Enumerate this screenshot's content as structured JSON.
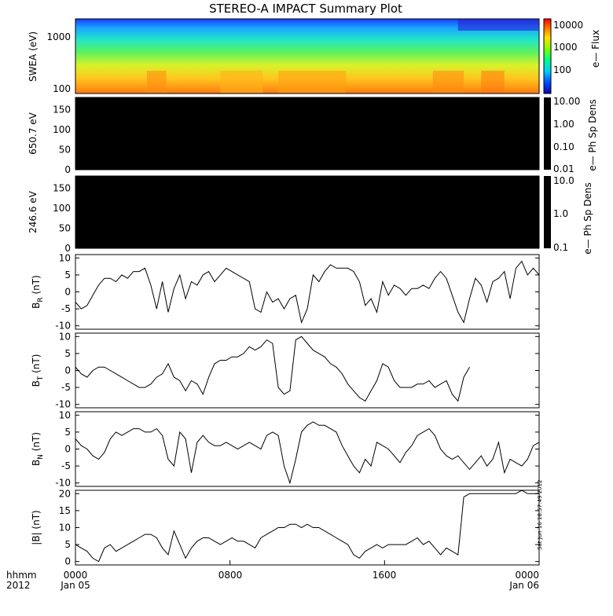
{
  "title": "STEREO-A IMPACT Summary Plot",
  "stamp": "Sat Jun 16 18:57:49 2012",
  "colors": {
    "black": "#000000",
    "white": "#ffffff"
  },
  "panels": {
    "swea": {
      "ylabel": "SWEA (eV)",
      "yticks": [
        "1000",
        "100"
      ],
      "cbar_label": "e— Flux",
      "cbar_ticks": [
        "10000",
        "1000",
        "100"
      ]
    },
    "pad650": {
      "ylabel": "650.7 eV",
      "yticks": [
        "150",
        "100",
        "50",
        "0"
      ],
      "cbar_label": "e— Ph Sp Dens",
      "cbar_ticks": [
        "10.00",
        "1.00",
        "0.10",
        "0.01"
      ]
    },
    "pad246": {
      "ylabel": "246.6 eV",
      "yticks": [
        "150",
        "100",
        "50",
        "0"
      ],
      "cbar_label": "e— Ph Sp Dens",
      "cbar_ticks": [
        "10.0",
        "1.0",
        "0.1"
      ]
    }
  },
  "footer": {
    "left_top": "hhmm",
    "left_bottom": "2012",
    "ticks": [
      "0000",
      "0800",
      "1600",
      "0000"
    ],
    "dates": [
      "Jan 05",
      "Jan 06"
    ]
  },
  "chart_data": [
    {
      "type": "heatmap",
      "panel": "SWEA electron flux spectrogram",
      "ylabel": "SWEA (eV)",
      "yscale": "log",
      "ylim": [
        90,
        2000
      ],
      "xlim": [
        0,
        24
      ],
      "colorbar": {
        "label": "e— Flux",
        "scale": "log",
        "ticks": [
          10000,
          1000,
          100
        ]
      },
      "flux_bands": [
        {
          "energy_ev": 1500,
          "flux": 150
        },
        {
          "energy_ev": 1000,
          "flux": 700
        },
        {
          "energy_ev": 600,
          "flux": 2000
        },
        {
          "energy_ev": 300,
          "flux": 4500
        },
        {
          "energy_ev": 130,
          "flux": 9000
        }
      ]
    },
    {
      "type": "heatmap",
      "panel": "650.7 eV pitch angle distribution",
      "ylabel": "650.7 eV",
      "ylim": [
        0,
        180
      ],
      "yticks": [
        0,
        50,
        100,
        150
      ],
      "colorbar": {
        "label": "e— Ph Sp Dens",
        "scale": "log",
        "ticks": [
          10.0,
          1.0,
          0.1,
          0.01
        ]
      }
    },
    {
      "type": "heatmap",
      "panel": "246.6 eV pitch angle distribution",
      "ylabel": "246.6 eV",
      "ylim": [
        0,
        180
      ],
      "yticks": [
        0,
        50,
        100,
        150
      ],
      "colorbar": {
        "label": "e— Ph Sp Dens",
        "scale": "log",
        "ticks": [
          10.0,
          1.0,
          0.1
        ]
      }
    },
    {
      "type": "line",
      "panel": "BR",
      "ylabel_base": "B",
      "ylabel_sub": "R",
      "ylabel_unit": " (nT)",
      "ylim": [
        -11,
        11
      ],
      "yticks": [
        10,
        5,
        0,
        -5,
        -10
      ],
      "x": [
        0,
        0.3,
        0.6,
        0.9,
        1.2,
        1.5,
        1.8,
        2.1,
        2.4,
        2.7,
        3.0,
        3.3,
        3.6,
        3.9,
        4.2,
        4.5,
        4.8,
        5.1,
        5.4,
        5.7,
        6.0,
        6.3,
        6.6,
        6.9,
        7.2,
        7.5,
        7.8,
        8.1,
        8.4,
        8.7,
        9.0,
        9.3,
        9.6,
        9.9,
        10.2,
        10.5,
        10.8,
        11.1,
        11.4,
        11.7,
        12.0,
        12.3,
        12.6,
        12.9,
        13.2,
        13.5,
        13.8,
        14.1,
        14.4,
        14.7,
        15.0,
        15.3,
        15.6,
        15.9,
        16.2,
        16.5,
        16.8,
        17.1,
        17.4,
        17.7,
        18.0,
        18.3,
        18.6,
        18.9,
        19.2,
        19.5,
        19.8,
        20.1,
        20.4,
        20.7,
        21.0,
        21.3,
        21.6,
        21.9,
        22.2,
        22.5,
        22.8,
        23.1,
        23.4,
        23.7,
        24.0
      ],
      "y": [
        -3,
        -5,
        -4,
        -1,
        2,
        4,
        4,
        3,
        5,
        4,
        6,
        6,
        7,
        2,
        -5,
        3,
        -6,
        1,
        5,
        -2,
        3,
        2,
        5,
        6,
        3,
        5,
        7,
        6,
        5,
        4,
        3,
        -5,
        -6,
        0,
        -3,
        -2,
        -5,
        -2,
        -1,
        -9,
        -5,
        5,
        3,
        6,
        8,
        7,
        7,
        7,
        6,
        3,
        -4,
        -2,
        -6,
        3,
        -1,
        2,
        1,
        -1,
        1,
        1,
        2,
        1,
        4,
        6,
        4,
        -1,
        -6,
        -9,
        -2,
        4,
        2,
        -3,
        3,
        4,
        6,
        -2,
        7,
        9,
        5,
        7,
        5
      ]
    },
    {
      "type": "line",
      "panel": "BT",
      "ylabel_base": "B",
      "ylabel_sub": "T",
      "ylabel_unit": " (nT)",
      "ylim": [
        -11,
        11
      ],
      "yticks": [
        10,
        5,
        0,
        -5,
        -10
      ],
      "x": [
        0,
        0.3,
        0.6,
        0.9,
        1.2,
        1.5,
        1.8,
        2.1,
        2.4,
        2.7,
        3.0,
        3.3,
        3.6,
        3.9,
        4.2,
        4.5,
        4.8,
        5.1,
        5.4,
        5.7,
        6.0,
        6.3,
        6.6,
        6.9,
        7.2,
        7.5,
        7.8,
        8.1,
        8.4,
        8.7,
        9.0,
        9.3,
        9.6,
        9.9,
        10.2,
        10.5,
        10.8,
        11.1,
        11.4,
        11.7,
        12.0,
        12.3,
        12.6,
        12.9,
        13.2,
        13.5,
        13.8,
        14.1,
        14.4,
        14.7,
        15.0,
        15.3,
        15.6,
        15.9,
        16.2,
        16.5,
        16.8,
        17.1,
        17.4,
        17.7,
        18.0,
        18.3,
        18.6,
        18.9,
        19.2,
        19.5,
        19.8,
        20.1,
        20.4
      ],
      "y": [
        1,
        -1,
        -2,
        0,
        1,
        1,
        0,
        -1,
        -2,
        -3,
        -4,
        -5,
        -5,
        -4,
        -2,
        -1,
        2,
        -2,
        -3,
        -6,
        -3,
        -4,
        -7,
        -2,
        2,
        3,
        3,
        4,
        4,
        5,
        7,
        6,
        7,
        9,
        8,
        -5,
        -7,
        -6,
        9,
        10,
        8,
        6,
        5,
        4,
        2,
        1,
        -1,
        -4,
        -6,
        -8,
        -9,
        -6,
        -3,
        2,
        1,
        -3,
        -5,
        -5,
        -5,
        -4,
        -4,
        -3,
        -5,
        -4,
        -3,
        -7,
        -9,
        -2,
        1
      ]
    },
    {
      "type": "line",
      "panel": "BN",
      "ylabel_base": "B",
      "ylabel_sub": "N",
      "ylabel_unit": " (nT)",
      "ylim": [
        -11,
        11
      ],
      "yticks": [
        10,
        5,
        0,
        -5,
        -10
      ],
      "x": [
        0,
        0.3,
        0.6,
        0.9,
        1.2,
        1.5,
        1.8,
        2.1,
        2.4,
        2.7,
        3.0,
        3.3,
        3.6,
        3.9,
        4.2,
        4.5,
        4.8,
        5.1,
        5.4,
        5.7,
        6.0,
        6.3,
        6.6,
        6.9,
        7.2,
        7.5,
        7.8,
        8.1,
        8.4,
        8.7,
        9.0,
        9.3,
        9.6,
        9.9,
        10.2,
        10.5,
        10.8,
        11.1,
        11.4,
        11.7,
        12.0,
        12.3,
        12.6,
        12.9,
        13.2,
        13.5,
        13.8,
        14.1,
        14.4,
        14.7,
        15.0,
        15.3,
        15.6,
        15.9,
        16.2,
        16.5,
        16.8,
        17.1,
        17.4,
        17.7,
        18.0,
        18.3,
        18.6,
        18.9,
        19.2,
        19.5,
        19.8,
        20.1,
        20.4,
        20.7,
        21.0,
        21.3,
        21.6,
        21.9,
        22.2,
        22.5,
        22.8,
        23.1,
        23.4,
        23.7,
        24.0
      ],
      "y": [
        3,
        1,
        0,
        -2,
        -3,
        -1,
        3,
        5,
        4,
        5,
        6,
        6,
        5,
        5,
        6,
        4,
        -3,
        -5,
        5,
        3,
        -7,
        2,
        4,
        2,
        1,
        1,
        2,
        1,
        0,
        1,
        2,
        1,
        0,
        4,
        5,
        4,
        -5,
        -10,
        -3,
        5,
        7,
        8,
        7,
        7,
        6,
        5,
        1,
        -2,
        -5,
        -7,
        -3,
        -5,
        2,
        1,
        0,
        -2,
        -4,
        -1,
        1,
        4,
        5,
        6,
        4,
        0,
        -2,
        -3,
        -2,
        -4,
        -6,
        -4,
        -2,
        -5,
        -3,
        2,
        -7,
        -3,
        -4,
        -5,
        -3,
        1,
        2
      ]
    },
    {
      "type": "line",
      "panel": "|B|",
      "ylabel": "|B| (nT)",
      "ylim": [
        -1,
        21
      ],
      "yticks": [
        20,
        15,
        10,
        5,
        0
      ],
      "x": [
        0,
        0.3,
        0.6,
        0.9,
        1.2,
        1.5,
        1.8,
        2.1,
        2.4,
        2.7,
        3.0,
        3.3,
        3.6,
        3.9,
        4.2,
        4.5,
        4.8,
        5.1,
        5.4,
        5.7,
        6.0,
        6.3,
        6.6,
        6.9,
        7.2,
        7.5,
        7.8,
        8.1,
        8.4,
        8.7,
        9.0,
        9.3,
        9.6,
        9.9,
        10.2,
        10.5,
        10.8,
        11.1,
        11.4,
        11.7,
        12.0,
        12.3,
        12.6,
        12.9,
        13.2,
        13.5,
        13.8,
        14.1,
        14.4,
        14.7,
        15.0,
        15.3,
        15.6,
        15.9,
        16.2,
        16.5,
        16.8,
        17.1,
        17.4,
        17.7,
        18.0,
        18.3,
        18.6,
        18.9,
        19.2,
        19.5,
        19.8,
        20.1,
        20.4,
        20.7,
        21.0,
        21.3,
        21.6,
        21.9,
        22.2,
        22.5,
        22.8,
        23.1,
        23.4,
        23.7,
        24.0
      ],
      "y": [
        5,
        4,
        3,
        1,
        0,
        4,
        5,
        3,
        4,
        5,
        6,
        7,
        8,
        8,
        7,
        4,
        2,
        9,
        5,
        1,
        4,
        6,
        7,
        7,
        6,
        5,
        6,
        7,
        6,
        6,
        5,
        4,
        7,
        8,
        9,
        10,
        10,
        11,
        11,
        10,
        11,
        10,
        10,
        9,
        8,
        7,
        6,
        5,
        2,
        1,
        3,
        4,
        5,
        4,
        5,
        5,
        5,
        5,
        6,
        7,
        5,
        6,
        4,
        2,
        4,
        3,
        2,
        19,
        20,
        20,
        20,
        20,
        20,
        20,
        20,
        20,
        20,
        21,
        20,
        20,
        20
      ]
    }
  ]
}
